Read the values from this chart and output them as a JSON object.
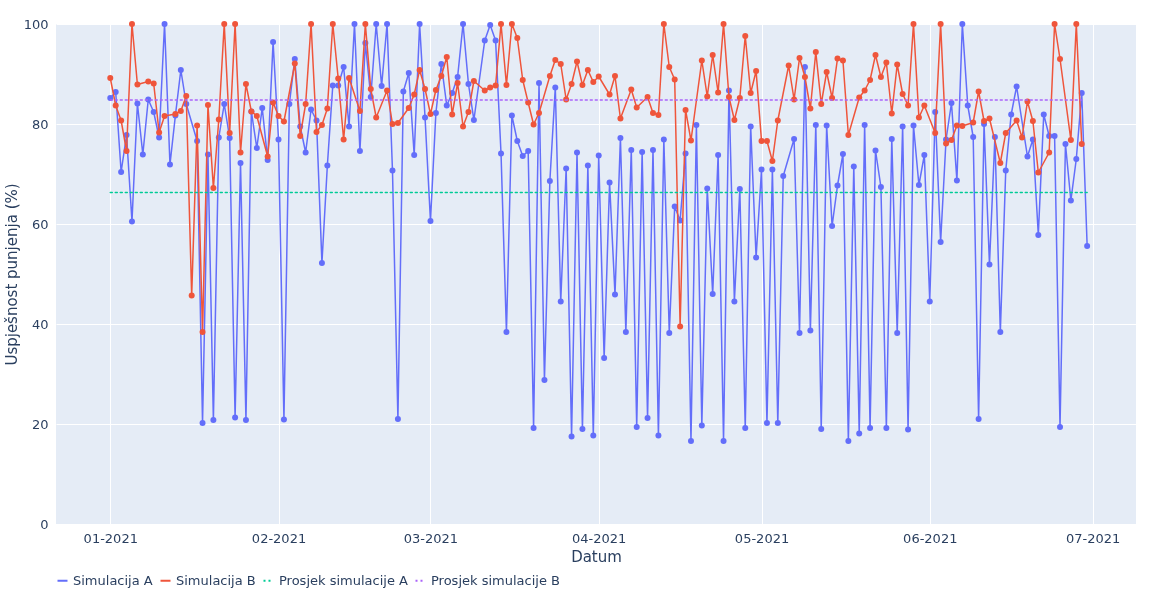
{
  "chart_data": {
    "type": "line",
    "xlabel": "Datum",
    "ylabel": "Uspješnost punjenja (%)",
    "xlim": [
      "2020-12-22",
      "2021-07-09"
    ],
    "xticks": [
      {
        "value": "2021-01-01",
        "label": "01-2021"
      },
      {
        "value": "2021-02-01",
        "label": "02-2021"
      },
      {
        "value": "2021-03-01",
        "label": "03-2021"
      },
      {
        "value": "2021-04-01",
        "label": "04-2021"
      },
      {
        "value": "2021-05-01",
        "label": "05-2021"
      },
      {
        "value": "2021-06-01",
        "label": "06-2021"
      },
      {
        "value": "2021-07-01",
        "label": "07-2021"
      }
    ],
    "ylim": [
      0,
      100
    ],
    "yticks": [
      0,
      20,
      40,
      60,
      80,
      100
    ],
    "grid": true,
    "legend": "bottom",
    "marker": "circle",
    "line_style": "solid",
    "series": [
      {
        "name": "Simulacija A",
        "color": "#636efa",
        "x": [
          "2021-01-01",
          "2021-01-02",
          "2021-01-03",
          "2021-01-04",
          "2021-01-05",
          "2021-01-06",
          "2021-01-07",
          "2021-01-08",
          "2021-01-09",
          "2021-01-10",
          "2021-01-11",
          "2021-01-12",
          "2021-01-13",
          "2021-01-14",
          "2021-01-15",
          "2021-01-17",
          "2021-01-18",
          "2021-01-19",
          "2021-01-20",
          "2021-01-21",
          "2021-01-22",
          "2021-01-23",
          "2021-01-24",
          "2021-01-25",
          "2021-01-26",
          "2021-01-27",
          "2021-01-28",
          "2021-01-29",
          "2021-01-30",
          "2021-01-31",
          "2021-02-01",
          "2021-02-02",
          "2021-02-03",
          "2021-02-04",
          "2021-02-05",
          "2021-02-06",
          "2021-02-07",
          "2021-02-08",
          "2021-02-09",
          "2021-02-10",
          "2021-02-11",
          "2021-02-12",
          "2021-02-13",
          "2021-02-14",
          "2021-02-15",
          "2021-02-16",
          "2021-02-17",
          "2021-02-18",
          "2021-02-19",
          "2021-02-20",
          "2021-02-21",
          "2021-02-22",
          "2021-02-23",
          "2021-02-24",
          "2021-02-25",
          "2021-02-26",
          "2021-02-27",
          "2021-02-28",
          "2021-03-01",
          "2021-03-02",
          "2021-03-03",
          "2021-03-04",
          "2021-03-05",
          "2021-03-06",
          "2021-03-07",
          "2021-03-08",
          "2021-03-09",
          "2021-03-11",
          "2021-03-12",
          "2021-03-13",
          "2021-03-14",
          "2021-03-15",
          "2021-03-16",
          "2021-03-17",
          "2021-03-18",
          "2021-03-19",
          "2021-03-20",
          "2021-03-21",
          "2021-03-22",
          "2021-03-23",
          "2021-03-24",
          "2021-03-25",
          "2021-03-26",
          "2021-03-27",
          "2021-03-28",
          "2021-03-29",
          "2021-03-30",
          "2021-03-31",
          "2021-04-01",
          "2021-04-02",
          "2021-04-03",
          "2021-04-04",
          "2021-04-05",
          "2021-04-06",
          "2021-04-07",
          "2021-04-08",
          "2021-04-09",
          "2021-04-10",
          "2021-04-11",
          "2021-04-12",
          "2021-04-13",
          "2021-04-14",
          "2021-04-15",
          "2021-04-16",
          "2021-04-17",
          "2021-04-18",
          "2021-04-19",
          "2021-04-20",
          "2021-04-21",
          "2021-04-22",
          "2021-04-23",
          "2021-04-24",
          "2021-04-25",
          "2021-04-26",
          "2021-04-27",
          "2021-04-28",
          "2021-04-29",
          "2021-04-30",
          "2021-05-01",
          "2021-05-02",
          "2021-05-03",
          "2021-05-04",
          "2021-05-05",
          "2021-05-07",
          "2021-05-08",
          "2021-05-09",
          "2021-05-10",
          "2021-05-11",
          "2021-05-12",
          "2021-05-13",
          "2021-05-14",
          "2021-05-15",
          "2021-05-16",
          "2021-05-17",
          "2021-05-18",
          "2021-05-19",
          "2021-05-20",
          "2021-05-21",
          "2021-05-22",
          "2021-05-23",
          "2021-05-24",
          "2021-05-25",
          "2021-05-26",
          "2021-05-27",
          "2021-05-28",
          "2021-05-29",
          "2021-05-30",
          "2021-05-31",
          "2021-06-01",
          "2021-06-02",
          "2021-06-03",
          "2021-06-04",
          "2021-06-05",
          "2021-06-06",
          "2021-06-07",
          "2021-06-08",
          "2021-06-09",
          "2021-06-10",
          "2021-06-11",
          "2021-06-12",
          "2021-06-13",
          "2021-06-14",
          "2021-06-15",
          "2021-06-16",
          "2021-06-17",
          "2021-06-19",
          "2021-06-20",
          "2021-06-21",
          "2021-06-22",
          "2021-06-23",
          "2021-06-24",
          "2021-06-25",
          "2021-06-26",
          "2021-06-27",
          "2021-06-28",
          "2021-06-29",
          "2021-06-30"
        ],
        "values": [
          85.2,
          86.4,
          70.4,
          77.8,
          60.5,
          84.1,
          73.9,
          84.9,
          82.4,
          77.3,
          100,
          71.9,
          81.7,
          90.8,
          84,
          76.6,
          20.2,
          73.9,
          20.8,
          77.3,
          84,
          77.2,
          21.3,
          72.2,
          20.8,
          82.5,
          75.2,
          83.2,
          72.8,
          96.4,
          76.9,
          20.9,
          84,
          93,
          79.5,
          74.3,
          82.9,
          80.7,
          52.2,
          71.7,
          87.7,
          87.7,
          91.4,
          79.5,
          100,
          74.6,
          96.2,
          85.4,
          100,
          87.6,
          100,
          70.7,
          21,
          86.5,
          90.2,
          73.8,
          100,
          81.3,
          60.6,
          82.2,
          92,
          83.7,
          86.2,
          89.4,
          100,
          88,
          80.8,
          96.7,
          99.8,
          96.7,
          74.1,
          38.4,
          81.7,
          76.6,
          73.6,
          74.6,
          19.2,
          88.2,
          28.8,
          68.6,
          87.3,
          44.5,
          71.1,
          17.5,
          74.3,
          19,
          71.7,
          17.7,
          73.7,
          33.2,
          68.3,
          45.9,
          77.2,
          38.4,
          74.8,
          19.4,
          74.4,
          21.2,
          74.8,
          17.7,
          76.9,
          38.2,
          63.5,
          60.7,
          74.1,
          16.6,
          79.8,
          19.7,
          67.1,
          46,
          73.8,
          16.6,
          86.7,
          44.5,
          67,
          19.2,
          79.5,
          53.3,
          70.9,
          20.2,
          70.9,
          20.2,
          69.6,
          77,
          38.2,
          91.4,
          38.7,
          79.8,
          19,
          79.7,
          59.6,
          67.7,
          74,
          16.6,
          71.5,
          18.1,
          79.8,
          19.2,
          74.7,
          67.4,
          19.2,
          77,
          38.2,
          79.5,
          18.9,
          79.7,
          67.8,
          73.8,
          44.5,
          82.4,
          56.4,
          76.9,
          84.2,
          68.7,
          100,
          83.7,
          77.4,
          21,
          80,
          51.9,
          77.4,
          38.4,
          70.7,
          81.9,
          87.5,
          73.5,
          76.9,
          57.8,
          81.9,
          77.6,
          77.6,
          19.4,
          76,
          64.7,
          73,
          86.2,
          55.6
        ]
      },
      {
        "name": "Simulacija B",
        "color": "#ef553b",
        "x": [
          "2021-01-01",
          "2021-01-02",
          "2021-01-03",
          "2021-01-04",
          "2021-01-05",
          "2021-01-06",
          "2021-01-08",
          "2021-01-09",
          "2021-01-10",
          "2021-01-11",
          "2021-01-13",
          "2021-01-14",
          "2021-01-15",
          "2021-01-16",
          "2021-01-17",
          "2021-01-18",
          "2021-01-19",
          "2021-01-20",
          "2021-01-21",
          "2021-01-22",
          "2021-01-23",
          "2021-01-24",
          "2021-01-25",
          "2021-01-26",
          "2021-01-27",
          "2021-01-28",
          "2021-01-30",
          "2021-01-31",
          "2021-02-01",
          "2021-02-02",
          "2021-02-04",
          "2021-02-05",
          "2021-02-06",
          "2021-02-07",
          "2021-02-08",
          "2021-02-09",
          "2021-02-10",
          "2021-02-11",
          "2021-02-12",
          "2021-02-13",
          "2021-02-14",
          "2021-02-16",
          "2021-02-17",
          "2021-02-18",
          "2021-02-19",
          "2021-02-21",
          "2021-02-22",
          "2021-02-23",
          "2021-02-25",
          "2021-02-26",
          "2021-02-27",
          "2021-02-28",
          "2021-03-01",
          "2021-03-02",
          "2021-03-03",
          "2021-03-04",
          "2021-03-05",
          "2021-03-06",
          "2021-03-07",
          "2021-03-08",
          "2021-03-09",
          "2021-03-11",
          "2021-03-12",
          "2021-03-13",
          "2021-03-14",
          "2021-03-15",
          "2021-03-16",
          "2021-03-17",
          "2021-03-18",
          "2021-03-19",
          "2021-03-20",
          "2021-03-21",
          "2021-03-23",
          "2021-03-24",
          "2021-03-25",
          "2021-03-26",
          "2021-03-27",
          "2021-03-28",
          "2021-03-29",
          "2021-03-30",
          "2021-03-31",
          "2021-04-01",
          "2021-04-03",
          "2021-04-04",
          "2021-04-05",
          "2021-04-07",
          "2021-04-08",
          "2021-04-10",
          "2021-04-11",
          "2021-04-12",
          "2021-04-13",
          "2021-04-14",
          "2021-04-15",
          "2021-04-16",
          "2021-04-17",
          "2021-04-18",
          "2021-04-20",
          "2021-04-21",
          "2021-04-22",
          "2021-04-23",
          "2021-04-24",
          "2021-04-25",
          "2021-04-26",
          "2021-04-27",
          "2021-04-28",
          "2021-04-29",
          "2021-04-30",
          "2021-05-01",
          "2021-05-02",
          "2021-05-03",
          "2021-05-04",
          "2021-05-06",
          "2021-05-07",
          "2021-05-08",
          "2021-05-09",
          "2021-05-10",
          "2021-05-11",
          "2021-05-12",
          "2021-05-13",
          "2021-05-14",
          "2021-05-15",
          "2021-05-16",
          "2021-05-17",
          "2021-05-19",
          "2021-05-20",
          "2021-05-21",
          "2021-05-22",
          "2021-05-23",
          "2021-05-24",
          "2021-05-25",
          "2021-05-26",
          "2021-05-27",
          "2021-05-28",
          "2021-05-29",
          "2021-05-30",
          "2021-05-31",
          "2021-06-02",
          "2021-06-03",
          "2021-06-04",
          "2021-06-05",
          "2021-06-06",
          "2021-06-07",
          "2021-06-09",
          "2021-06-10",
          "2021-06-11",
          "2021-06-12",
          "2021-06-14",
          "2021-06-15",
          "2021-06-17",
          "2021-06-18",
          "2021-06-19",
          "2021-06-20",
          "2021-06-21",
          "2021-06-23",
          "2021-06-24",
          "2021-06-25",
          "2021-06-27",
          "2021-06-28",
          "2021-06-29"
        ],
        "values": [
          89.2,
          83.7,
          80.7,
          74.6,
          100,
          87.9,
          88.5,
          88.1,
          78.3,
          81.6,
          82,
          82.6,
          85.6,
          45.7,
          79.7,
          38.4,
          83.8,
          67.2,
          80.9,
          100,
          78.2,
          100,
          74.3,
          88,
          82.5,
          81.6,
          73.5,
          84.3,
          81.6,
          80.5,
          92.1,
          77.6,
          84,
          100,
          78.4,
          79.8,
          83.1,
          100,
          89.1,
          76.9,
          89.2,
          82.6,
          100,
          87,
          81.3,
          86.7,
          80,
          80.2,
          83.2,
          85.9,
          90.8,
          87,
          82,
          86.8,
          89.6,
          93.4,
          81.9,
          88.2,
          79.5,
          82.4,
          88.6,
          86.7,
          87.3,
          87.7,
          100,
          87.8,
          100,
          97.2,
          88.8,
          84.3,
          79.9,
          82.2,
          89.6,
          92.8,
          92,
          84.9,
          88,
          92.5,
          87.8,
          90.8,
          88.4,
          89.5,
          85.9,
          89.6,
          81.1,
          86.9,
          83.3,
          85.4,
          82.2,
          81.8,
          100,
          91.4,
          88.9,
          39.5,
          82.8,
          76.7,
          92.7,
          85.5,
          93.8,
          86.3,
          100,
          85.4,
          80.8,
          85.2,
          97.6,
          86.2,
          90.6,
          76.6,
          76.6,
          72.6,
          80.7,
          91.7,
          84.9,
          93.2,
          89.4,
          83.1,
          94.4,
          84,
          90.4,
          85.2,
          93.1,
          92.7,
          77.8,
          85.3,
          86.7,
          88.8,
          93.8,
          89.4,
          92.3,
          82.1,
          91.9,
          86,
          83.7,
          100,
          81.3,
          83.7,
          78.2,
          100,
          76.1,
          76.8,
          79.7,
          79.6,
          80.3,
          86.5,
          80.6,
          81.1,
          72.2,
          78.2,
          80.7,
          77.3,
          84.5,
          80.6,
          70.3,
          74.3,
          100,
          93,
          76.8,
          100,
          76
        ]
      },
      {
        "name": "Prosjek simulacije A",
        "color": "#00cc96",
        "marker": "none",
        "line_style": "dotted",
        "x": [
          "2021-01-01",
          "2021-06-30"
        ],
        "values": [
          66.3,
          66.3
        ]
      },
      {
        "name": "Prosjek simulacije B",
        "color": "#ab63fa",
        "marker": "none",
        "line_style": "dotted",
        "x": [
          "2021-01-01",
          "2021-06-29"
        ],
        "values": [
          84.8,
          84.8
        ]
      }
    ]
  }
}
